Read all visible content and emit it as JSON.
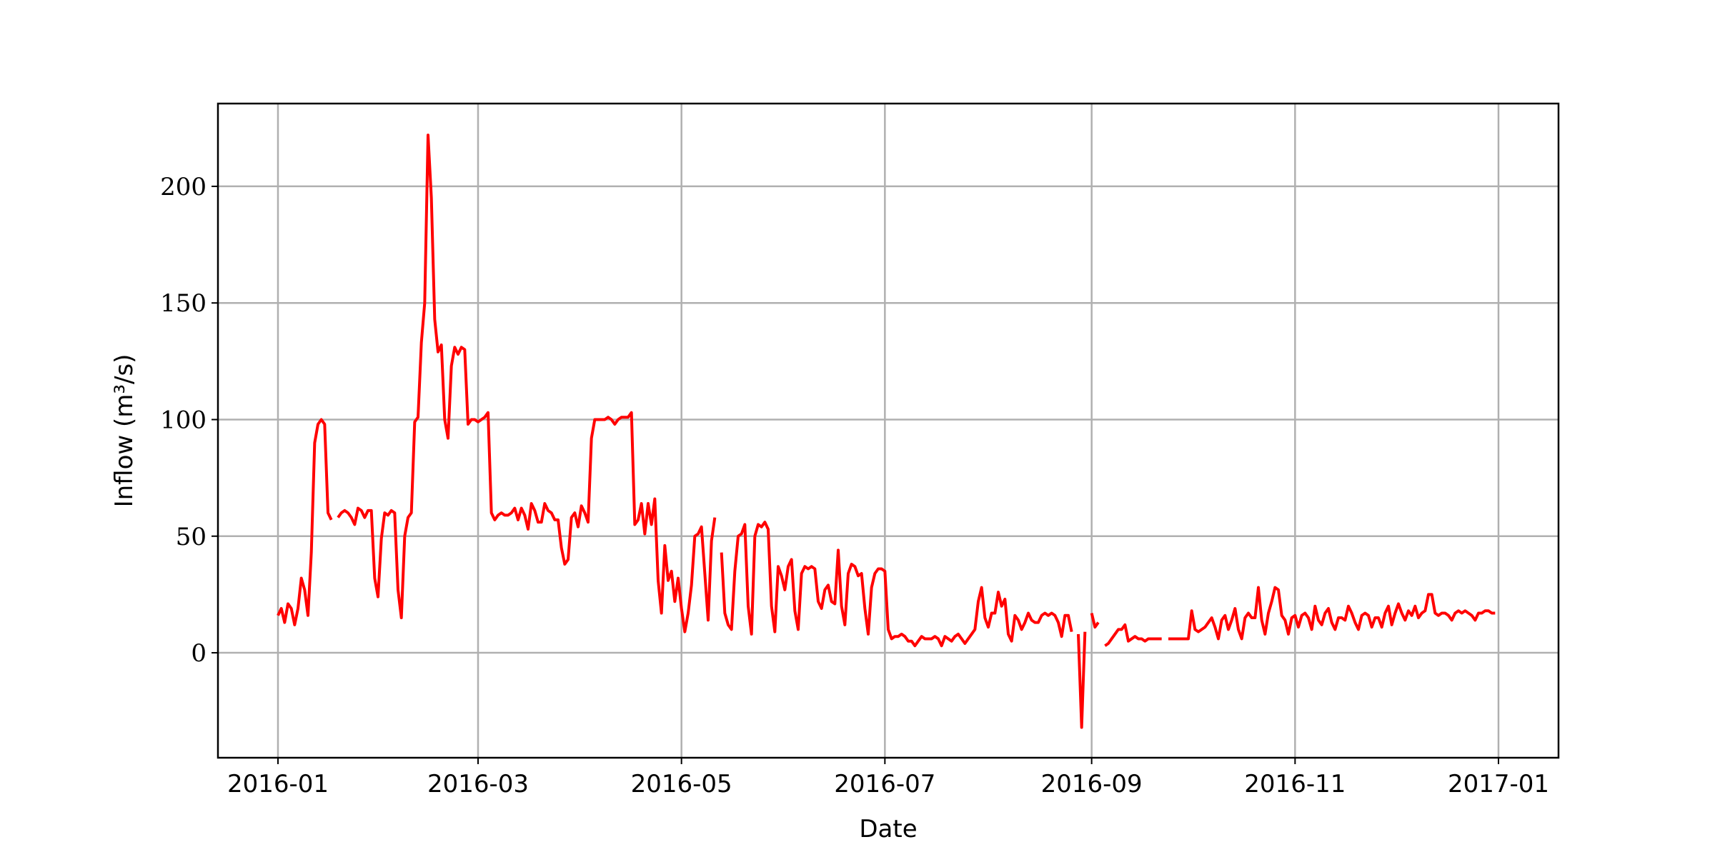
{
  "chart_data": {
    "type": "line",
    "xlabel": "Date",
    "ylabel": "Inflow (m³/s)",
    "color": "#ff0000",
    "grid": true,
    "xlim": [
      -18,
      384
    ],
    "ylim": [
      -45,
      235.5
    ],
    "xticks": [
      {
        "value": 0,
        "label": "2016-01"
      },
      {
        "value": 60,
        "label": "2016-03"
      },
      {
        "value": 121,
        "label": "2016-05"
      },
      {
        "value": 182,
        "label": "2016-07"
      },
      {
        "value": 244,
        "label": "2016-09"
      },
      {
        "value": 305,
        "label": "2016-11"
      },
      {
        "value": 366,
        "label": "2017-01"
      }
    ],
    "yticks": [
      0,
      50,
      100,
      150,
      200
    ],
    "x": [
      0,
      1,
      2,
      3,
      4,
      5,
      6,
      7,
      8,
      9,
      10,
      11,
      12,
      13,
      14,
      15,
      16,
      17,
      18,
      19,
      20,
      21,
      22,
      23,
      24,
      25,
      26,
      27,
      28,
      29,
      30,
      31,
      32,
      33,
      34,
      35,
      36,
      37,
      38,
      39,
      40,
      41,
      42,
      43,
      44,
      45,
      46,
      47,
      48,
      49,
      50,
      51,
      52,
      53,
      54,
      55,
      56,
      57,
      58,
      59,
      60,
      61,
      62,
      63,
      64,
      65,
      66,
      67,
      68,
      69,
      70,
      71,
      72,
      73,
      74,
      75,
      76,
      77,
      78,
      79,
      80,
      81,
      82,
      83,
      84,
      85,
      86,
      87,
      88,
      89,
      90,
      91,
      92,
      93,
      94,
      95,
      96,
      97,
      98,
      99,
      100,
      101,
      102,
      103,
      104,
      105,
      106,
      107,
      108,
      109,
      110,
      111,
      112,
      113,
      114,
      115,
      116,
      117,
      118,
      119,
      120,
      121,
      122,
      123,
      124,
      125,
      126,
      127,
      128,
      129,
      130,
      131,
      132,
      133,
      134,
      135,
      136,
      137,
      138,
      139,
      140,
      141,
      142,
      143,
      144,
      145,
      146,
      147,
      148,
      149,
      150,
      151,
      152,
      153,
      154,
      155,
      156,
      157,
      158,
      159,
      160,
      161,
      162,
      163,
      164,
      165,
      166,
      167,
      168,
      169,
      170,
      171,
      172,
      173,
      174,
      175,
      176,
      177,
      178,
      179,
      180,
      181,
      182,
      183,
      184,
      185,
      186,
      187,
      188,
      189,
      190,
      191,
      192,
      193,
      194,
      195,
      196,
      197,
      198,
      199,
      200,
      201,
      202,
      203,
      204,
      205,
      206,
      207,
      208,
      209,
      210,
      211,
      212,
      213,
      214,
      215,
      216,
      217,
      218,
      219,
      220,
      221,
      222,
      223,
      224,
      225,
      226,
      227,
      228,
      229,
      230,
      231,
      232,
      233,
      234,
      235,
      236,
      237,
      238,
      239,
      240,
      241,
      242,
      243,
      244,
      245,
      246,
      247,
      248,
      249,
      250,
      251,
      252,
      253,
      254,
      255,
      256,
      257,
      258,
      259,
      260,
      261,
      262,
      263,
      264,
      265,
      266,
      267,
      268,
      269,
      270,
      271,
      272,
      273,
      274,
      275,
      276,
      277,
      278,
      279,
      280,
      281,
      282,
      283,
      284,
      285,
      286,
      287,
      288,
      289,
      290,
      291,
      292,
      293,
      294,
      295,
      296,
      297,
      298,
      299,
      300,
      301,
      302,
      303,
      304,
      305,
      306,
      307,
      308,
      309,
      310,
      311,
      312,
      313,
      314,
      315,
      316,
      317,
      318,
      319,
      320,
      321,
      322,
      323,
      324,
      325,
      326,
      327,
      328,
      329,
      330,
      331,
      332,
      333,
      334,
      335,
      336,
      337,
      338,
      339,
      340,
      341,
      342,
      343,
      344,
      345,
      346,
      347,
      348,
      349,
      350,
      351,
      352,
      353,
      354,
      355,
      356,
      357,
      358,
      359,
      360,
      361,
      362,
      363,
      364,
      365
    ],
    "values": [
      16,
      19,
      13,
      21,
      19,
      12,
      19,
      32,
      27,
      16,
      43,
      90,
      98,
      100,
      98,
      60,
      57,
      null,
      58,
      60,
      61,
      60,
      58,
      55,
      62,
      61,
      58,
      61,
      61,
      32,
      24,
      49,
      60,
      59,
      61,
      60,
      27,
      15,
      50,
      58,
      60,
      99,
      101,
      133,
      150,
      222,
      195,
      143,
      129,
      132,
      100,
      92,
      123,
      131,
      128,
      131,
      130,
      98,
      100,
      100,
      99,
      100,
      101,
      103,
      60,
      57,
      59,
      60,
      59,
      59,
      60,
      62,
      57,
      62,
      59,
      53,
      64,
      61,
      56,
      56,
      64,
      61,
      60,
      57,
      57,
      45,
      38,
      40,
      58,
      60,
      54,
      63,
      60,
      56,
      92,
      100,
      100,
      100,
      100,
      101,
      100,
      98,
      100,
      101,
      101,
      101,
      103,
      55,
      57,
      64,
      51,
      64,
      55,
      66,
      31,
      17,
      46,
      31,
      35,
      22,
      32,
      19,
      9,
      17,
      29,
      50,
      51,
      54,
      34,
      14,
      48,
      58,
      null,
      43,
      17,
      12,
      10,
      35,
      50,
      51,
      55,
      20,
      8,
      50,
      55,
      54,
      56,
      53,
      20,
      9,
      37,
      33,
      27,
      37,
      40,
      18,
      10,
      34,
      37,
      36,
      37,
      36,
      22,
      19,
      27,
      29,
      22,
      21,
      44,
      20,
      12,
      34,
      38,
      37,
      33,
      34,
      19,
      8,
      28,
      34,
      36,
      36,
      35,
      10,
      6,
      7,
      7,
      8,
      7,
      5,
      5,
      3,
      5,
      7,
      6,
      6,
      6,
      7,
      6,
      3,
      7,
      6,
      5,
      7,
      8,
      6,
      4,
      6,
      8,
      10,
      22,
      28,
      15,
      11,
      17,
      17,
      26,
      20,
      23,
      8,
      5,
      16,
      14,
      10,
      13,
      17,
      14,
      13,
      13,
      16,
      17,
      16,
      17,
      16,
      13,
      7,
      16,
      16,
      9,
      null,
      8,
      -32,
      9,
      null,
      17,
      11,
      13,
      null,
      3,
      4,
      6,
      8,
      10,
      10,
      12,
      5,
      6,
      7,
      6,
      6,
      5,
      6,
      6,
      6,
      6,
      6,
      null,
      6,
      6,
      6,
      6,
      6,
      6,
      6,
      18,
      10,
      9,
      10,
      11,
      13,
      15,
      11,
      6,
      14,
      16,
      10,
      14,
      19,
      10,
      6,
      15,
      17,
      15,
      15,
      28,
      14,
      8,
      17,
      22,
      28,
      27,
      16,
      14,
      8,
      15,
      16,
      11,
      16,
      17,
      15,
      10,
      20,
      14,
      12,
      17,
      19,
      13,
      10,
      15,
      15,
      14,
      20,
      17,
      13,
      10,
      16,
      17,
      16,
      11,
      15,
      15,
      11,
      17,
      20,
      12,
      17,
      21,
      17,
      14,
      18,
      16,
      20,
      15,
      17,
      18,
      25,
      25,
      17,
      16,
      17,
      17,
      16,
      14,
      17,
      18,
      17,
      18,
      17,
      16,
      14,
      17,
      17,
      18,
      18,
      17,
      17
    ]
  }
}
